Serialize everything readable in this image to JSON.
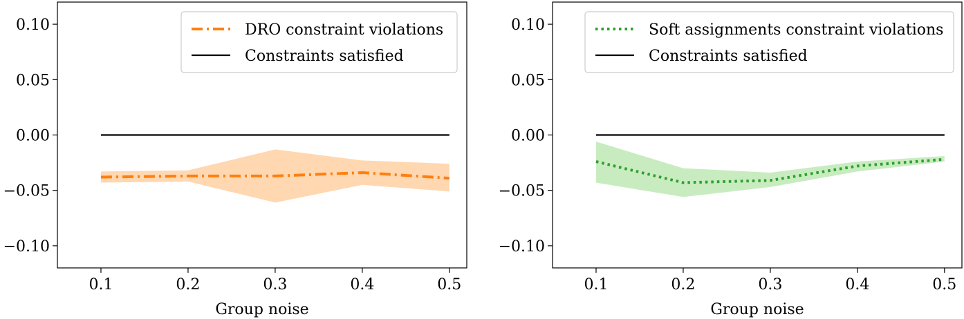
{
  "chart_data": [
    {
      "type": "line",
      "xlabel": "Group noise",
      "ylabel": "",
      "xlim": [
        0.05,
        0.52
      ],
      "ylim": [
        -0.12,
        0.12
      ],
      "x_ticks": [
        0.1,
        0.2,
        0.3,
        0.4,
        0.5
      ],
      "x_tick_labels": [
        "0.1",
        "0.2",
        "0.3",
        "0.4",
        "0.5"
      ],
      "y_ticks": [
        0.1,
        0.05,
        0.0,
        -0.05,
        -0.1
      ],
      "y_tick_labels": [
        "0.10",
        "0.05",
        "0.00",
        "−0.05",
        "−0.10"
      ],
      "legend_position": "top-right",
      "series": [
        {
          "name": "DRO constraint violations",
          "style": "dashdot",
          "color": "#ff7f0e",
          "x": [
            0.1,
            0.2,
            0.3,
            0.4,
            0.5
          ],
          "values": [
            -0.038,
            -0.037,
            -0.037,
            -0.034,
            -0.039
          ],
          "band_lower": [
            -0.043,
            -0.042,
            -0.061,
            -0.045,
            -0.051
          ],
          "band_upper": [
            -0.033,
            -0.032,
            -0.013,
            -0.023,
            -0.026
          ],
          "band_color": "#ffd7b0"
        },
        {
          "name": "Constraints satisfied",
          "style": "solid",
          "color": "#000000",
          "x": [
            0.1,
            0.5
          ],
          "values": [
            0.0,
            0.0
          ]
        }
      ]
    },
    {
      "type": "line",
      "xlabel": "Group noise",
      "ylabel": "",
      "xlim": [
        0.05,
        0.52
      ],
      "ylim": [
        -0.12,
        0.12
      ],
      "x_ticks": [
        0.1,
        0.2,
        0.3,
        0.4,
        0.5
      ],
      "x_tick_labels": [
        "0.1",
        "0.2",
        "0.3",
        "0.4",
        "0.5"
      ],
      "y_ticks": [
        0.1,
        0.05,
        0.0,
        -0.05,
        -0.1
      ],
      "y_tick_labels": [
        "0.10",
        "0.05",
        "0.00",
        "−0.05",
        "−0.10"
      ],
      "legend_position": "top-right",
      "series": [
        {
          "name": "Soft assignments constraint violations",
          "style": "dotted",
          "color": "#2ca02c",
          "x": [
            0.1,
            0.2,
            0.3,
            0.4,
            0.5
          ],
          "values": [
            -0.024,
            -0.043,
            -0.041,
            -0.028,
            -0.022
          ],
          "band_lower": [
            -0.043,
            -0.056,
            -0.047,
            -0.033,
            -0.024
          ],
          "band_upper": [
            -0.006,
            -0.03,
            -0.034,
            -0.024,
            -0.019
          ],
          "band_color": "#c8ecc0"
        },
        {
          "name": "Constraints satisfied",
          "style": "solid",
          "color": "#000000",
          "x": [
            0.1,
            0.5
          ],
          "values": [
            0.0,
            0.0
          ]
        }
      ]
    }
  ]
}
